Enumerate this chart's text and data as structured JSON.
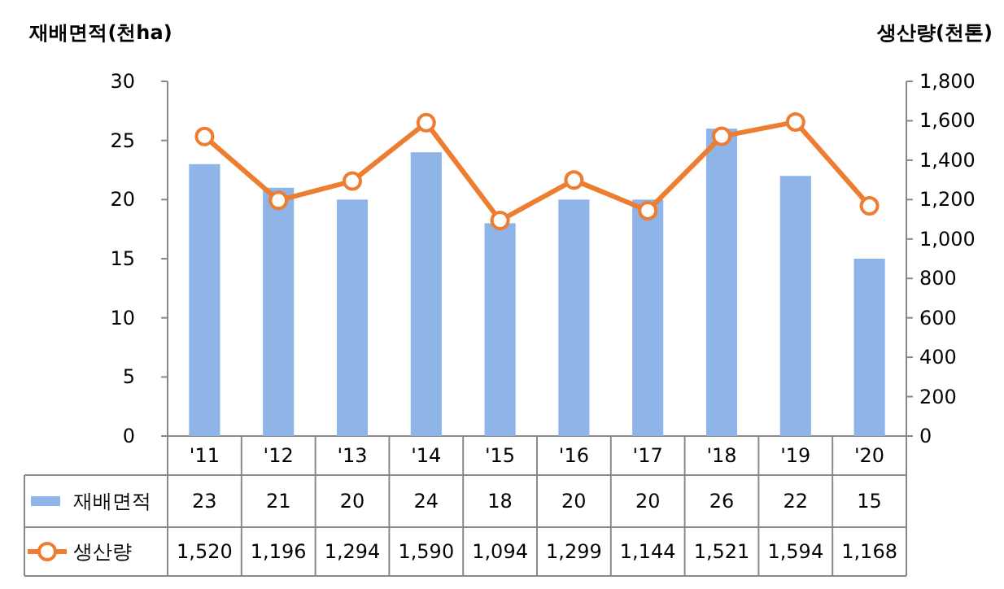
{
  "chart_data": {
    "type": "bar",
    "categories": [
      "'11",
      "'12",
      "'13",
      "'14",
      "'15",
      "'16",
      "'17",
      "'18",
      "'19",
      "'20"
    ],
    "ylabel": "재배면적(천ha)",
    "y2label": "생산량(천톤)",
    "ylim": [
      0,
      30
    ],
    "yticks": [
      0,
      5,
      10,
      15,
      20,
      25,
      30
    ],
    "y2lim": [
      0,
      1800
    ],
    "y2ticks": [
      0,
      200,
      400,
      600,
      800,
      {
        "value": 1000,
        "label": "1,000"
      },
      {
        "value": 1200,
        "label": "1,200"
      },
      {
        "value": 1400,
        "label": "1,400"
      },
      {
        "value": 1600,
        "label": "1,600"
      },
      {
        "value": 1800,
        "label": "1,800"
      }
    ],
    "legend": "bottom",
    "series": [
      {
        "name": "재배면적",
        "color": "#8fb4e8",
        "values": [
          23,
          21,
          20,
          24,
          18,
          20,
          20,
          26,
          22,
          15
        ],
        "value_labels": [
          "23",
          "21",
          "20",
          "24",
          "18",
          "20",
          "20",
          "26",
          "22",
          "15"
        ]
      },
      {
        "name": "생산량",
        "type": "line",
        "axis": "y2",
        "marker": "circle",
        "color": "#ed7d31",
        "values": [
          1520,
          1196,
          1294,
          1590,
          1094,
          1299,
          1144,
          1521,
          1594,
          1168
        ],
        "value_labels": [
          "1,520",
          "1,196",
          "1,294",
          "1,590",
          "1,094",
          "1,299",
          "1,144",
          "1,521",
          "1,594",
          "1,168"
        ]
      }
    ]
  }
}
